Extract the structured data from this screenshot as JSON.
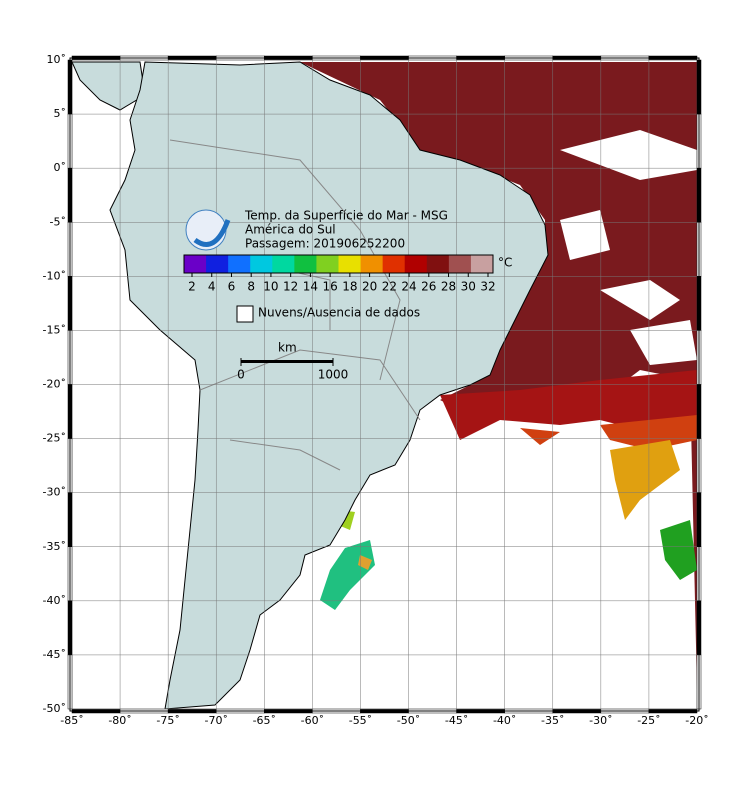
{
  "map": {
    "title": "Temp. da Superfície do Mar - MSG",
    "subtitle": "América do Sul",
    "pass": "Passagem: 201906252200",
    "colorbar": {
      "unit": "°C",
      "ticks": [
        2,
        4,
        6,
        8,
        10,
        12,
        14,
        16,
        18,
        20,
        22,
        24,
        26,
        28,
        30,
        32
      ],
      "colors": [
        "#6a00c8",
        "#1020e0",
        "#1070ff",
        "#00c8e0",
        "#00d8a0",
        "#10c040",
        "#80d020",
        "#e8e000",
        "#f09000",
        "#e03000",
        "#b00000",
        "#801010",
        "#a05050",
        "#c8a0a0"
      ]
    },
    "legend": "Nuvens/Ausencia de dados",
    "scale": {
      "unit": "km",
      "ticks": [
        0,
        1000
      ]
    },
    "lonlim": [
      -85,
      -20
    ],
    "latlim": [
      10,
      -50
    ],
    "lon_ticks": [
      {
        "value": -85,
        "label": "-85˚"
      },
      {
        "value": -80,
        "label": "-80˚"
      },
      {
        "value": -75,
        "label": "-75˚"
      },
      {
        "value": -70,
        "label": "-70˚"
      },
      {
        "value": -65,
        "label": "-65˚"
      },
      {
        "value": -60,
        "label": "-60˚"
      },
      {
        "value": -55,
        "label": "-55˚"
      },
      {
        "value": -50,
        "label": "-50˚"
      },
      {
        "value": -45,
        "label": "-45˚"
      },
      {
        "value": -40,
        "label": "-40˚"
      },
      {
        "value": -35,
        "label": "-35˚"
      },
      {
        "value": -30,
        "label": "-30˚"
      },
      {
        "value": -25,
        "label": "-25˚"
      },
      {
        "value": -20,
        "label": "-20˚"
      }
    ],
    "lat_ticks": [
      {
        "value": 10,
        "label": "10˚"
      },
      {
        "value": 5,
        "label": "5˚"
      },
      {
        "value": 0,
        "label": "0˚"
      },
      {
        "value": -5,
        "label": "-5˚"
      },
      {
        "value": -10,
        "label": "-10˚"
      },
      {
        "value": -15,
        "label": "-15˚"
      },
      {
        "value": -20,
        "label": "-20˚"
      },
      {
        "value": -25,
        "label": "-25˚"
      },
      {
        "value": -30,
        "label": "-30˚"
      },
      {
        "value": -35,
        "label": "-35˚"
      },
      {
        "value": -40,
        "label": "-40˚"
      },
      {
        "value": -45,
        "label": "-45˚"
      },
      {
        "value": -50,
        "label": "-50˚"
      }
    ]
  }
}
